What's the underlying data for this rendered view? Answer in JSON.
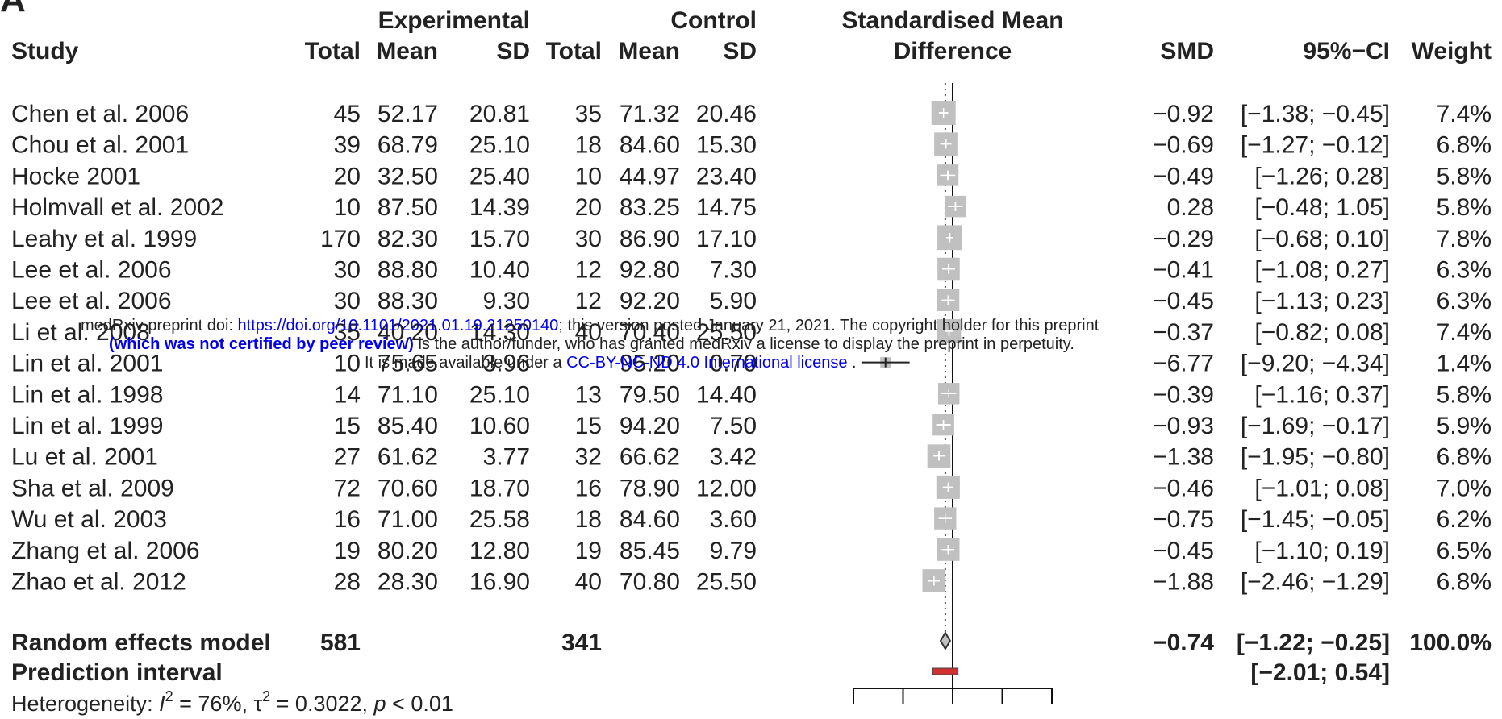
{
  "panel_label": "A",
  "headers": {
    "group_experimental": "Experimental",
    "group_control": "Control",
    "study": "Study",
    "exp_total": "Total",
    "exp_mean": "Mean",
    "exp_sd": "SD",
    "ctl_total": "Total",
    "ctl_mean": "Mean",
    "ctl_sd": "SD",
    "plot_title_line1": "Standardised Mean",
    "plot_title_line2": "Difference",
    "smd": "SMD",
    "ci": "95%−CI",
    "weight": "Weight"
  },
  "chart_data": {
    "type": "forest",
    "effect_measure": "SMD",
    "xlim": [
      -10,
      10
    ],
    "null_line": 0,
    "axis_ticks": [
      -10,
      -5,
      0,
      5,
      10
    ],
    "studies": [
      {
        "study": "Chen et al. 2006",
        "exp_total": "45",
        "exp_mean": "52.17",
        "exp_sd": "20.81",
        "ctl_total": "35",
        "ctl_mean": "71.32",
        "ctl_sd": "20.46",
        "smd_text": "−0.92",
        "ci_text": "[−1.38; −0.45]",
        "weight_text": "7.4%",
        "smd": -0.92,
        "lo": -1.38,
        "hi": -0.45,
        "weight": 7.4
      },
      {
        "study": "Chou et al. 2001",
        "exp_total": "39",
        "exp_mean": "68.79",
        "exp_sd": "25.10",
        "ctl_total": "18",
        "ctl_mean": "84.60",
        "ctl_sd": "15.30",
        "smd_text": "−0.69",
        "ci_text": "[−1.27; −0.12]",
        "weight_text": "6.8%",
        "smd": -0.69,
        "lo": -1.27,
        "hi": -0.12,
        "weight": 6.8
      },
      {
        "study": "Hocke 2001",
        "exp_total": "20",
        "exp_mean": "32.50",
        "exp_sd": "25.40",
        "ctl_total": "10",
        "ctl_mean": "44.97",
        "ctl_sd": "23.40",
        "smd_text": "−0.49",
        "ci_text": "[−1.26; 0.28]",
        "weight_text": "5.8%",
        "smd": -0.49,
        "lo": -1.26,
        "hi": 0.28,
        "weight": 5.8
      },
      {
        "study": "Holmvall et al. 2002",
        "exp_total": "10",
        "exp_mean": "87.50",
        "exp_sd": "14.39",
        "ctl_total": "20",
        "ctl_mean": "83.25",
        "ctl_sd": "14.75",
        "smd_text": "0.28",
        "ci_text": "[−0.48; 1.05]",
        "weight_text": "5.8%",
        "smd": 0.28,
        "lo": -0.48,
        "hi": 1.05,
        "weight": 5.8
      },
      {
        "study": "Leahy et al. 1999",
        "exp_total": "170",
        "exp_mean": "82.30",
        "exp_sd": "15.70",
        "ctl_total": "30",
        "ctl_mean": "86.90",
        "ctl_sd": "17.10",
        "smd_text": "−0.29",
        "ci_text": "[−0.68; 0.10]",
        "weight_text": "7.8%",
        "smd": -0.29,
        "lo": -0.68,
        "hi": 0.1,
        "weight": 7.8
      },
      {
        "study": "Lee et al. 2006",
        "exp_total": "30",
        "exp_mean": "88.80",
        "exp_sd": "10.40",
        "ctl_total": "12",
        "ctl_mean": "92.80",
        "ctl_sd": "7.30",
        "smd_text": "−0.41",
        "ci_text": "[−1.08; 0.27]",
        "weight_text": "6.3%",
        "smd": -0.41,
        "lo": -1.08,
        "hi": 0.27,
        "weight": 6.3
      },
      {
        "study": "Lee et al. 2006",
        "exp_total": "30",
        "exp_mean": "88.30",
        "exp_sd": "9.30",
        "ctl_total": "12",
        "ctl_mean": "92.20",
        "ctl_sd": "5.90",
        "smd_text": "−0.45",
        "ci_text": "[−1.13; 0.23]",
        "weight_text": "6.3%",
        "smd": -0.45,
        "lo": -1.13,
        "hi": 0.23,
        "weight": 6.3
      },
      {
        "study": "Li et al. 2008",
        "exp_total": "35",
        "exp_mean": "40.20",
        "exp_sd": "14.30",
        "ctl_total": "40",
        "ctl_mean": "70.40",
        "ctl_sd": "25.50",
        "smd_text": "−0.37",
        "ci_text": "[−0.82; 0.08]",
        "weight_text": "7.4%",
        "smd": -0.37,
        "lo": -0.82,
        "hi": 0.08,
        "weight": 7.4
      },
      {
        "study": "Lin et al. 2001",
        "exp_total": "10",
        "exp_mean": "75.65",
        "exp_sd": "3.96",
        "ctl_total": "",
        "ctl_mean": "95.20",
        "ctl_sd": "0.70",
        "smd_text": "−6.77",
        "ci_text": "[−9.20; −4.34]",
        "weight_text": "1.4%",
        "smd": -6.77,
        "lo": -9.2,
        "hi": -4.34,
        "weight": 1.4
      },
      {
        "study": "Lin et al. 1998",
        "exp_total": "14",
        "exp_mean": "71.10",
        "exp_sd": "25.10",
        "ctl_total": "13",
        "ctl_mean": "79.50",
        "ctl_sd": "14.40",
        "smd_text": "−0.39",
        "ci_text": "[−1.16; 0.37]",
        "weight_text": "5.8%",
        "smd": -0.39,
        "lo": -1.16,
        "hi": 0.37,
        "weight": 5.8
      },
      {
        "study": "Lin et al. 1999",
        "exp_total": "15",
        "exp_mean": "85.40",
        "exp_sd": "10.60",
        "ctl_total": "15",
        "ctl_mean": "94.20",
        "ctl_sd": "7.50",
        "smd_text": "−0.93",
        "ci_text": "[−1.69; −0.17]",
        "weight_text": "5.9%",
        "smd": -0.93,
        "lo": -1.69,
        "hi": -0.17,
        "weight": 5.9
      },
      {
        "study": "Lu et al. 2001",
        "exp_total": "27",
        "exp_mean": "61.62",
        "exp_sd": "3.77",
        "ctl_total": "32",
        "ctl_mean": "66.62",
        "ctl_sd": "3.42",
        "smd_text": "−1.38",
        "ci_text": "[−1.95; −0.80]",
        "weight_text": "6.8%",
        "smd": -1.38,
        "lo": -1.95,
        "hi": -0.8,
        "weight": 6.8
      },
      {
        "study": "Sha et al. 2009",
        "exp_total": "72",
        "exp_mean": "70.60",
        "exp_sd": "18.70",
        "ctl_total": "16",
        "ctl_mean": "78.90",
        "ctl_sd": "12.00",
        "smd_text": "−0.46",
        "ci_text": "[−1.01; 0.08]",
        "weight_text": "7.0%",
        "smd": -0.46,
        "lo": -1.01,
        "hi": 0.08,
        "weight": 7.0
      },
      {
        "study": "Wu et al. 2003",
        "exp_total": "16",
        "exp_mean": "71.00",
        "exp_sd": "25.58",
        "ctl_total": "18",
        "ctl_mean": "84.60",
        "ctl_sd": "3.60",
        "smd_text": "−0.75",
        "ci_text": "[−1.45; −0.05]",
        "weight_text": "6.2%",
        "smd": -0.75,
        "lo": -1.45,
        "hi": -0.05,
        "weight": 6.2
      },
      {
        "study": "Zhang et al. 2006",
        "exp_total": "19",
        "exp_mean": "80.20",
        "exp_sd": "12.80",
        "ctl_total": "19",
        "ctl_mean": "85.45",
        "ctl_sd": "9.79",
        "smd_text": "−0.45",
        "ci_text": "[−1.10; 0.19]",
        "weight_text": "6.5%",
        "smd": -0.45,
        "lo": -1.1,
        "hi": 0.19,
        "weight": 6.5
      },
      {
        "study": "Zhao et al. 2012",
        "exp_total": "28",
        "exp_mean": "28.30",
        "exp_sd": "16.90",
        "ctl_total": "40",
        "ctl_mean": "70.80",
        "ctl_sd": "25.50",
        "smd_text": "−1.88",
        "ci_text": "[−2.46; −1.29]",
        "weight_text": "6.8%",
        "smd": -1.88,
        "lo": -2.46,
        "hi": -1.29,
        "weight": 6.8
      }
    ],
    "pooled": {
      "label": "Random effects model",
      "exp_total": "581",
      "ctl_total": "341",
      "smd_text": "−0.74",
      "ci_text": "[−1.22; −0.25]",
      "weight_text": "100.0%",
      "smd": -0.74,
      "lo": -1.22,
      "hi": -0.25
    },
    "prediction": {
      "label": "Prediction interval",
      "ci_text": "[−2.01; 0.54]",
      "lo": -2.01,
      "hi": 0.54
    },
    "heterogeneity": {
      "prefix": "Heterogeneity: ",
      "i2_symbol": "I",
      "sup": "2",
      "i2_value": " = 76%, ",
      "tau_symbol": "τ",
      "tau_value": " = 0.3022, ",
      "p_symbol": "p",
      "p_value": " < 0.01"
    }
  },
  "colors": {
    "box": "#c0c0c0",
    "ci_line": "#222222",
    "ci_line_inside": "#ffffff",
    "prediction_bar": "#d03030",
    "text": "#222222",
    "link": "#0000ee"
  },
  "watermark": {
    "line1_prefix": "medRxiv preprint doi: ",
    "line1_link": "https://doi.org/10.1101/2021.01.19.21250140",
    "line1_suffix": "; this version posted January 21, 2021. The copyright holder for this preprint",
    "line2_bold": "(which was not certified by peer review)",
    "line2_rest": " is the author/funder, who has granted medRxiv a license to display the preprint in perpetuity.",
    "line3_prefix": "It is made available under a ",
    "line3_link": "CC-BY-NC-ND 4.0 International license",
    "line3_suffix": " ."
  }
}
